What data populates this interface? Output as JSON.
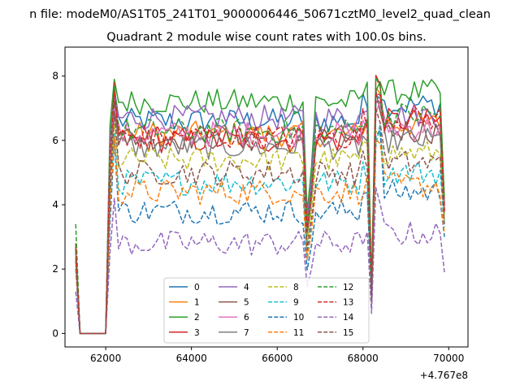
{
  "chart_data": {
    "type": "line",
    "suptitle": "n file: modeM0/AS1T05_241T01_9000006446_50671cztM0_level2_quad_clean",
    "title": "Quadrant 2 module wise count rates with 100.0s bins.",
    "xlabel": "",
    "ylabel": "",
    "x_offset_label": "+4.767e8",
    "xlim": [
      61050,
      70450
    ],
    "ylim": [
      -0.42,
      8.9
    ],
    "x_ticks": [
      62000,
      64000,
      66000,
      68000,
      70000
    ],
    "x_tick_labels": [
      "62000",
      "64000",
      "66000",
      "68000",
      "70000"
    ],
    "y_ticks": [
      0,
      2,
      4,
      6,
      8
    ],
    "y_tick_labels": [
      "0",
      "2",
      "4",
      "6",
      "8"
    ],
    "bin_s": 100.0,
    "x_start": 61300,
    "x_end": 69900,
    "gap_start": 61400,
    "gap_end": 62000,
    "dips": [
      {
        "x": 66700,
        "factor": 0.52
      },
      {
        "x": 66800,
        "factor": 0.72
      },
      {
        "x": 68200,
        "factor": 0.2
      }
    ],
    "legend_location": "lower center",
    "legend_columns": 4,
    "series": [
      {
        "name": "0",
        "color": "#1f77b4",
        "dash": "solid",
        "start": 2.7,
        "level": 6.6,
        "peak": 7.6,
        "late": 7.1,
        "end": 4.0
      },
      {
        "name": "1",
        "color": "#ff7f0e",
        "dash": "solid",
        "start": 2.6,
        "level": 6.2,
        "peak": 7.5,
        "late": 6.5,
        "end": 3.9
      },
      {
        "name": "2",
        "color": "#2ca02c",
        "dash": "solid",
        "start": 2.7,
        "level": 7.2,
        "peak": 7.9,
        "late": 7.5,
        "end": 4.1
      },
      {
        "name": "3",
        "color": "#d62728",
        "dash": "solid",
        "start": 2.8,
        "level": 6.0,
        "peak": 7.8,
        "late": 6.6,
        "end": 3.8
      },
      {
        "name": "4",
        "color": "#9467bd",
        "dash": "solid",
        "start": 2.6,
        "level": 6.7,
        "peak": 7.4,
        "late": 6.8,
        "end": 4.0
      },
      {
        "name": "5",
        "color": "#8c564b",
        "dash": "solid",
        "start": 2.5,
        "level": 6.1,
        "peak": 7.2,
        "late": 6.3,
        "end": 3.8
      },
      {
        "name": "6",
        "color": "#e377c2",
        "dash": "solid",
        "start": 2.6,
        "level": 6.2,
        "peak": 7.0,
        "late": 6.4,
        "end": 3.9
      },
      {
        "name": "7",
        "color": "#7f7f7f",
        "dash": "solid",
        "start": 2.5,
        "level": 5.8,
        "peak": 6.8,
        "late": 6.0,
        "end": 3.7
      },
      {
        "name": "8",
        "color": "#bcbd22",
        "dash": "dashed",
        "start": 2.4,
        "level": 5.4,
        "peak": 6.5,
        "late": 5.6,
        "end": 3.5
      },
      {
        "name": "9",
        "color": "#17becf",
        "dash": "dashed",
        "start": 2.3,
        "level": 4.7,
        "peak": 6.2,
        "late": 5.0,
        "end": 3.3
      },
      {
        "name": "10",
        "color": "#1f77b4",
        "dash": "dashed",
        "start": 2.0,
        "level": 3.8,
        "peak": 6.0,
        "late": 4.4,
        "end": 3.0
      },
      {
        "name": "11",
        "color": "#ff7f0e",
        "dash": "dashed",
        "start": 2.2,
        "level": 4.4,
        "peak": 6.1,
        "late": 4.6,
        "end": 3.1
      },
      {
        "name": "12",
        "color": "#2ca02c",
        "dash": "dashed",
        "start": 3.4,
        "level": 6.3,
        "peak": 7.7,
        "late": 6.8,
        "end": 4.2
      },
      {
        "name": "13",
        "color": "#d62728",
        "dash": "dashed",
        "start": 2.6,
        "level": 6.1,
        "peak": 7.5,
        "late": 6.7,
        "end": 3.8
      },
      {
        "name": "14",
        "color": "#9467bd",
        "dash": "dashed",
        "start": 1.3,
        "level": 2.8,
        "peak": 4.2,
        "late": 3.1,
        "end": 1.9
      },
      {
        "name": "15",
        "color": "#8c564b",
        "dash": "dashed",
        "start": 2.3,
        "level": 5.0,
        "peak": 6.9,
        "late": 5.3,
        "end": 3.4
      }
    ]
  }
}
